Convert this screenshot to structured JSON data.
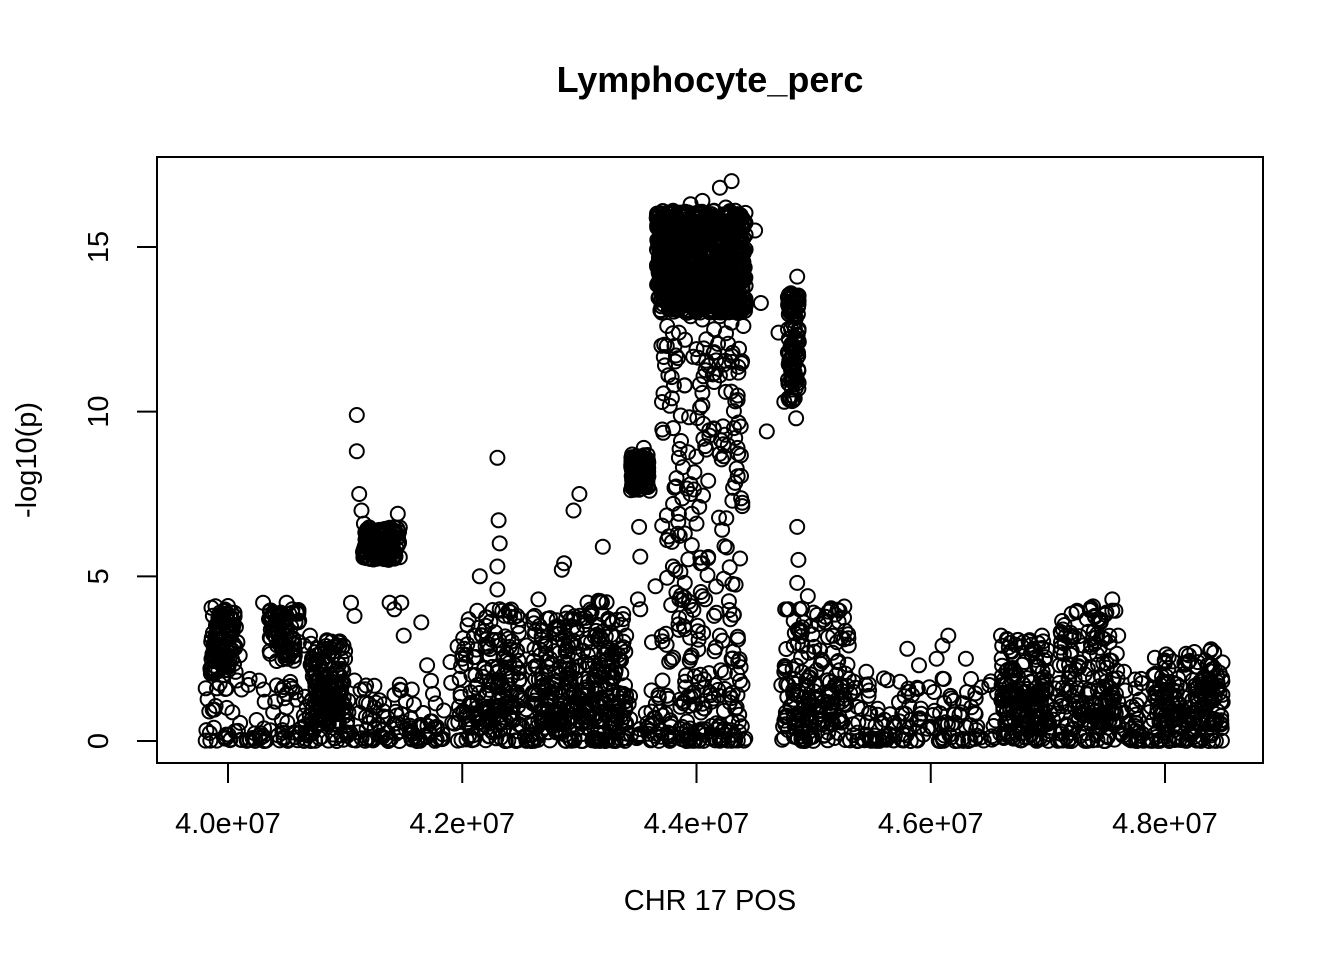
{
  "chart_data": {
    "type": "scatter",
    "title": "Lymphocyte_perc",
    "xlabel": "CHR 17 POS",
    "ylabel": "-log10(p)",
    "xlim": [
      39800000,
      48500000
    ],
    "ylim": [
      0,
      17
    ],
    "xticks": [
      40000000,
      42000000,
      44000000,
      46000000,
      48000000
    ],
    "xtick_labels": [
      "4.0e+07",
      "4.2e+07",
      "4.4e+07",
      "4.6e+07",
      "4.8e+07"
    ],
    "yticks": [
      0,
      5,
      10,
      15
    ],
    "ytick_labels": [
      "0",
      "5",
      "10",
      "15"
    ],
    "marker": "open-circle",
    "grid": false,
    "colors": {
      "points": "#000000",
      "axes": "#000000",
      "background": "#ffffff"
    },
    "series": [
      {
        "points": [
          [
            39810000,
            1.6
          ],
          [
            39850000,
            2.2
          ],
          [
            39900000,
            3.1
          ],
          [
            39950000,
            3.8
          ],
          [
            40000000,
            4.1
          ],
          [
            40030000,
            3.9
          ],
          [
            40080000,
            3.0
          ],
          [
            40100000,
            2.6
          ],
          [
            40300000,
            4.2
          ],
          [
            40350000,
            3.7
          ],
          [
            40400000,
            3.2
          ],
          [
            40450000,
            3.9
          ],
          [
            40500000,
            4.2
          ],
          [
            40550000,
            4.0
          ],
          [
            40600000,
            3.6
          ],
          [
            40650000,
            2.9
          ],
          [
            40700000,
            3.2
          ],
          [
            40750000,
            2.4
          ],
          [
            40900000,
            2.6
          ],
          [
            41000000,
            2.5
          ],
          [
            41050000,
            4.2
          ],
          [
            41080000,
            3.8
          ],
          [
            41100000,
            9.9
          ],
          [
            41100000,
            8.8
          ],
          [
            41120000,
            7.5
          ],
          [
            41140000,
            7.0
          ],
          [
            41160000,
            6.6
          ],
          [
            41200000,
            6.1
          ],
          [
            41250000,
            5.8
          ],
          [
            41300000,
            6.3
          ],
          [
            41350000,
            5.9
          ],
          [
            41400000,
            6.2
          ],
          [
            41420000,
            5.6
          ],
          [
            41450000,
            6.9
          ],
          [
            41380000,
            4.2
          ],
          [
            41420000,
            4.0
          ],
          [
            41480000,
            4.2
          ],
          [
            41500000,
            3.2
          ],
          [
            41650000,
            3.6
          ],
          [
            41700000,
            2.3
          ],
          [
            41900000,
            2.4
          ],
          [
            42000000,
            2.5
          ],
          [
            42100000,
            3.2
          ],
          [
            42150000,
            5.0
          ],
          [
            42200000,
            3.5
          ],
          [
            42300000,
            8.6
          ],
          [
            42310000,
            6.7
          ],
          [
            42320000,
            6.0
          ],
          [
            42300000,
            5.3
          ],
          [
            42300000,
            4.6
          ],
          [
            42320000,
            4.0
          ],
          [
            42280000,
            3.3
          ],
          [
            42450000,
            2.3
          ],
          [
            42550000,
            2.9
          ],
          [
            42650000,
            4.3
          ],
          [
            42750000,
            2.5
          ],
          [
            42850000,
            5.2
          ],
          [
            42870000,
            5.4
          ],
          [
            42900000,
            3.9
          ],
          [
            42950000,
            7.0
          ],
          [
            43000000,
            7.5
          ],
          [
            42980000,
            3.3
          ],
          [
            43050000,
            2.4
          ],
          [
            43100000,
            2.7
          ],
          [
            43200000,
            5.9
          ],
          [
            43300000,
            2.7
          ],
          [
            43400000,
            3.2
          ],
          [
            43450000,
            8.7
          ],
          [
            43480000,
            8.4
          ],
          [
            43500000,
            8.1
          ],
          [
            43510000,
            6.5
          ],
          [
            43520000,
            5.6
          ],
          [
            43500000,
            4.3
          ],
          [
            43520000,
            4.0
          ],
          [
            43550000,
            8.9
          ],
          [
            43580000,
            8.2
          ],
          [
            43600000,
            7.6
          ],
          [
            43620000,
            3.0
          ],
          [
            43650000,
            4.7
          ],
          [
            43700000,
            12.0
          ],
          [
            43700000,
            13.2
          ],
          [
            43680000,
            14.7
          ],
          [
            43700000,
            15.5
          ],
          [
            43750000,
            15.8
          ],
          [
            43800000,
            16.1
          ],
          [
            43850000,
            16.0
          ],
          [
            43900000,
            15.6
          ],
          [
            43950000,
            16.3
          ],
          [
            44000000,
            15.9
          ],
          [
            44050000,
            16.4
          ],
          [
            44100000,
            15.8
          ],
          [
            44150000,
            16.1
          ],
          [
            44200000,
            16.8
          ],
          [
            44250000,
            16.2
          ],
          [
            44300000,
            17.0
          ],
          [
            44350000,
            16.0
          ],
          [
            44400000,
            15.6
          ],
          [
            43750000,
            12.6
          ],
          [
            43800000,
            13.4
          ],
          [
            43850000,
            12.4
          ],
          [
            43900000,
            13.8
          ],
          [
            43950000,
            12.9
          ],
          [
            44000000,
            13.6
          ],
          [
            44050000,
            12.8
          ],
          [
            44100000,
            13.2
          ],
          [
            44150000,
            12.5
          ],
          [
            44200000,
            12.9
          ],
          [
            44250000,
            13.4
          ],
          [
            44300000,
            12.7
          ],
          [
            44350000,
            13.0
          ],
          [
            44400000,
            12.6
          ],
          [
            43800000,
            9.5
          ],
          [
            43850000,
            8.6
          ],
          [
            43900000,
            10.8
          ],
          [
            43950000,
            7.8
          ],
          [
            44000000,
            11.9
          ],
          [
            44050000,
            10.2
          ],
          [
            44100000,
            11.4
          ],
          [
            44150000,
            10.9
          ],
          [
            44200000,
            11.1
          ],
          [
            44250000,
            10.6
          ],
          [
            44300000,
            11.7
          ],
          [
            44320000,
            9.5
          ],
          [
            44330000,
            9.2
          ],
          [
            44350000,
            8.9
          ],
          [
            43800000,
            7.2
          ],
          [
            43850000,
            6.9
          ],
          [
            43900000,
            6.3
          ],
          [
            43950000,
            7.5
          ],
          [
            44000000,
            6.6
          ],
          [
            44050000,
            5.4
          ],
          [
            44100000,
            7.9
          ],
          [
            43750000,
            6.1
          ],
          [
            43820000,
            5.2
          ],
          [
            43900000,
            4.8
          ],
          [
            43950000,
            4.1
          ],
          [
            44050000,
            4.4
          ],
          [
            44150000,
            3.8
          ],
          [
            44200000,
            3.2
          ],
          [
            44300000,
            2.5
          ],
          [
            44350000,
            1.4
          ],
          [
            44500000,
            15.5
          ],
          [
            44550000,
            13.3
          ],
          [
            44600000,
            9.4
          ],
          [
            44700000,
            12.4
          ],
          [
            44750000,
            10.3
          ],
          [
            44780000,
            11.8
          ],
          [
            44800000,
            13.2
          ],
          [
            44820000,
            13.5
          ],
          [
            44840000,
            12.5
          ],
          [
            44860000,
            14.1
          ],
          [
            44850000,
            11.0
          ],
          [
            44870000,
            10.7
          ],
          [
            44850000,
            9.8
          ],
          [
            44860000,
            6.5
          ],
          [
            44870000,
            5.5
          ],
          [
            44860000,
            4.8
          ],
          [
            44880000,
            4.0
          ],
          [
            44950000,
            4.4
          ],
          [
            44900000,
            3.3
          ],
          [
            44830000,
            2.9
          ],
          [
            44750000,
            2.1
          ],
          [
            44850000,
            1.4
          ],
          [
            45000000,
            3.9
          ],
          [
            45100000,
            3.6
          ],
          [
            45200000,
            3.0
          ],
          [
            45300000,
            2.9
          ],
          [
            45450000,
            2.1
          ],
          [
            45600000,
            1.9
          ],
          [
            45800000,
            2.8
          ],
          [
            45900000,
            2.3
          ],
          [
            46050000,
            2.5
          ],
          [
            46100000,
            2.9
          ],
          [
            46150000,
            3.2
          ],
          [
            46300000,
            2.5
          ],
          [
            46500000,
            1.7
          ],
          [
            46600000,
            3.2
          ],
          [
            46650000,
            3.1
          ],
          [
            46800000,
            2.4
          ],
          [
            46950000,
            3.2
          ],
          [
            47100000,
            2.3
          ],
          [
            47200000,
            3.2
          ],
          [
            47300000,
            2.9
          ],
          [
            47400000,
            3.8
          ],
          [
            47450000,
            3.6
          ],
          [
            47500000,
            3.9
          ],
          [
            47550000,
            4.3
          ],
          [
            47600000,
            3.2
          ],
          [
            47650000,
            2.1
          ],
          [
            47750000,
            1.6
          ],
          [
            47900000,
            2.0
          ],
          [
            48000000,
            2.4
          ],
          [
            48100000,
            1.5
          ],
          [
            48200000,
            2.4
          ],
          [
            48300000,
            1.8
          ],
          [
            48400000,
            2.3
          ],
          [
            48450000,
            1.6
          ]
        ]
      }
    ]
  }
}
